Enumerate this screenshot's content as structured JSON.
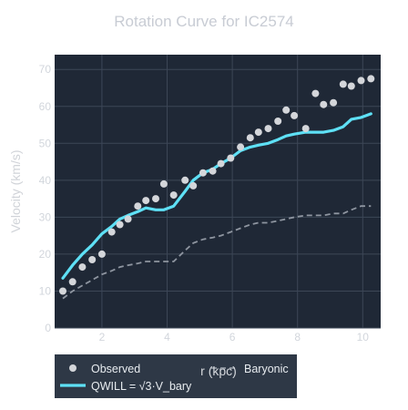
{
  "chart_data": {
    "type": "line",
    "title": "Rotation Curve for IC2574",
    "xlabel": "r (kpc)",
    "ylabel": "Velocity (km/s)",
    "xlim": [
      0.55,
      10.55
    ],
    "ylim": [
      0,
      74
    ],
    "x_ticks": [
      2,
      4,
      6,
      8,
      10
    ],
    "y_ticks": [
      0,
      10,
      20,
      30,
      40,
      50,
      60,
      70
    ],
    "grid": true,
    "legend_position": "bottom-left",
    "colors": {
      "plot_bg": "#1f2836",
      "grid": "#3d4757",
      "observed": "#d4d6da",
      "qwill": "#5ee0f5",
      "baryonic": "#8e95a0",
      "legend_bg": "#2e3846"
    },
    "series": [
      {
        "name": "Observed",
        "kind": "scatter",
        "x": [
          0.8,
          1.1,
          1.4,
          1.7,
          2.0,
          2.3,
          2.55,
          2.8,
          3.1,
          3.35,
          3.65,
          3.9,
          4.2,
          4.55,
          4.8,
          5.1,
          5.4,
          5.65,
          5.95,
          6.25,
          6.55,
          6.8,
          7.1,
          7.4,
          7.65,
          7.9,
          8.25,
          8.55,
          8.8,
          9.1,
          9.4,
          9.65,
          9.95,
          10.25
        ],
        "y": [
          10,
          12.5,
          16.5,
          18.5,
          20,
          26,
          28,
          29.5,
          33,
          34.5,
          35,
          39,
          36,
          40,
          38.5,
          42,
          42.5,
          44.5,
          46,
          49,
          51.5,
          53,
          54,
          56,
          59,
          57.5,
          54,
          63.5,
          60.5,
          61,
          66,
          65.5,
          67,
          67.5
        ]
      },
      {
        "name": "QWILL = √3·V_bary",
        "kind": "line",
        "x": [
          0.8,
          1.1,
          1.4,
          1.7,
          2.0,
          2.3,
          2.55,
          2.8,
          3.1,
          3.35,
          3.65,
          3.9,
          4.2,
          4.55,
          4.8,
          5.1,
          5.4,
          5.65,
          5.95,
          6.25,
          6.55,
          6.8,
          7.1,
          7.4,
          7.65,
          7.9,
          8.25,
          8.55,
          8.8,
          9.1,
          9.4,
          9.65,
          9.95,
          10.25
        ],
        "y": [
          13.5,
          17,
          20,
          22.5,
          25.5,
          27.5,
          29.5,
          30.5,
          31.5,
          32.5,
          32,
          32,
          33,
          37,
          40,
          42,
          43,
          44.5,
          46,
          48,
          49,
          49.5,
          50,
          51,
          52,
          52.5,
          53,
          53,
          53,
          53.5,
          54.5,
          56.5,
          57,
          58
        ]
      },
      {
        "name": "Baryonic",
        "kind": "dashed-line",
        "x": [
          0.8,
          1.1,
          1.4,
          1.7,
          2.0,
          2.3,
          2.55,
          2.8,
          3.1,
          3.35,
          3.65,
          3.9,
          4.2,
          4.55,
          4.8,
          5.1,
          5.4,
          5.65,
          5.95,
          6.25,
          6.55,
          6.8,
          7.1,
          7.4,
          7.65,
          7.9,
          8.25,
          8.55,
          8.8,
          9.1,
          9.4,
          9.65,
          9.95,
          10.25
        ],
        "y": [
          8,
          10,
          11.5,
          13,
          14.5,
          15.5,
          16.5,
          17,
          17.5,
          18,
          18,
          18,
          18,
          21,
          23,
          24,
          24.5,
          25,
          26,
          27,
          28,
          28.5,
          28.5,
          29,
          29.5,
          30,
          30.5,
          30.5,
          30.5,
          31,
          31,
          32,
          33,
          33
        ]
      }
    ]
  },
  "legend": {
    "observed": "Observed",
    "qwill": "QWILL = √3·V_bary",
    "baryonic": "Baryonic"
  }
}
